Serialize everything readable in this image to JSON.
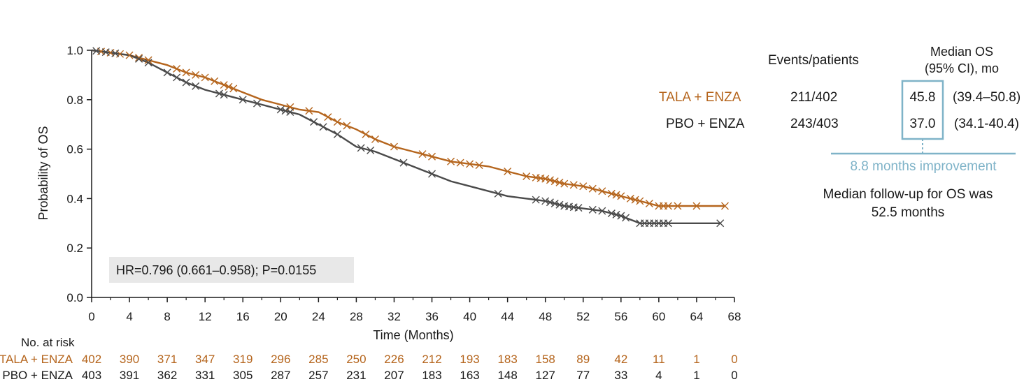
{
  "chart_data": {
    "type": "line",
    "subtype": "kaplan-meier",
    "title": "",
    "xlabel": "Time (Months)",
    "ylabel": "Probability of OS",
    "xlim": [
      0,
      68
    ],
    "ylim": [
      0,
      1.0
    ],
    "x_ticks": [
      0,
      4,
      8,
      12,
      16,
      20,
      24,
      28,
      32,
      36,
      40,
      44,
      48,
      52,
      56,
      60,
      64,
      68
    ],
    "y_ticks": [
      "0.0",
      "0.2",
      "0.4",
      "0.6",
      "0.8",
      "1.0"
    ],
    "colors": {
      "tala": "#b5651d",
      "pbo": "#4a4a4a"
    },
    "series": [
      {
        "name": "TALA + ENZA",
        "color": "#b5651d",
        "x": [
          0,
          2,
          4,
          6,
          8,
          10,
          12,
          14,
          16,
          18,
          20,
          22,
          24,
          26,
          28,
          30,
          32,
          34,
          36,
          38,
          40,
          42,
          44,
          46,
          48,
          50,
          52,
          54,
          56,
          58,
          60,
          62,
          64,
          67
        ],
        "y": [
          1.0,
          0.99,
          0.98,
          0.96,
          0.94,
          0.91,
          0.89,
          0.86,
          0.83,
          0.8,
          0.78,
          0.76,
          0.75,
          0.71,
          0.68,
          0.64,
          0.61,
          0.59,
          0.57,
          0.55,
          0.54,
          0.53,
          0.51,
          0.49,
          0.48,
          0.46,
          0.45,
          0.43,
          0.41,
          0.39,
          0.37,
          0.37,
          0.37,
          0.37
        ],
        "censor_x": [
          1,
          2,
          3,
          4,
          5,
          6,
          9,
          10,
          11,
          12,
          13,
          14,
          14.5,
          15,
          21,
          23,
          25,
          26,
          27,
          29,
          30,
          32,
          35,
          36,
          38,
          39,
          40,
          41,
          44,
          46,
          47,
          47.5,
          48,
          48.5,
          49,
          49.5,
          50,
          51,
          52,
          53,
          54,
          55,
          55.5,
          56,
          57,
          57.5,
          58,
          59,
          60,
          60.5,
          61,
          62,
          64,
          67
        ]
      },
      {
        "name": "PBO + ENZA",
        "color": "#4a4a4a",
        "x": [
          0,
          2,
          4,
          6,
          8,
          10,
          12,
          14,
          16,
          18,
          20,
          22,
          24,
          26,
          28,
          30,
          32,
          34,
          36,
          38,
          40,
          42,
          44,
          46,
          48,
          50,
          52,
          54,
          56,
          58,
          60,
          62,
          64,
          66.5
        ],
        "y": [
          1.0,
          0.99,
          0.98,
          0.95,
          0.91,
          0.87,
          0.84,
          0.82,
          0.8,
          0.78,
          0.76,
          0.74,
          0.7,
          0.66,
          0.61,
          0.59,
          0.56,
          0.53,
          0.5,
          0.47,
          0.45,
          0.43,
          0.41,
          0.4,
          0.39,
          0.37,
          0.36,
          0.35,
          0.33,
          0.3,
          0.3,
          0.3,
          0.3,
          0.3
        ],
        "censor_x": [
          0.5,
          1.5,
          2.5,
          5,
          6,
          8,
          9,
          10,
          11,
          13.5,
          14,
          16,
          17.5,
          20,
          20.5,
          21,
          23.5,
          24.5,
          26,
          28.5,
          29.5,
          33,
          36,
          43,
          47,
          48,
          48.5,
          49,
          49.5,
          50,
          50.5,
          51,
          51.5,
          53,
          54,
          55,
          55.5,
          56,
          56.5,
          58,
          58.5,
          59,
          59.5,
          60,
          60.5,
          61,
          66.5
        ]
      }
    ],
    "annotation": "HR=0.796 (0.661–0.958); P=0.0155",
    "risk_table": {
      "title": "No. at risk",
      "rows": [
        {
          "label": "TALA + ENZA",
          "color": "#b5651d",
          "values": [
            "402",
            "390",
            "371",
            "347",
            "319",
            "296",
            "285",
            "250",
            "226",
            "212",
            "193",
            "183",
            "158",
            "89",
            "42",
            "11",
            "1",
            "0"
          ]
        },
        {
          "label": "PBO + ENZA",
          "color": "#1a1a1a",
          "values": [
            "403",
            "391",
            "362",
            "331",
            "305",
            "287",
            "257",
            "231",
            "207",
            "183",
            "163",
            "148",
            "127",
            "77",
            "33",
            "4",
            "1",
            "0"
          ]
        }
      ]
    }
  },
  "side_table": {
    "events_header": "Events/patients",
    "median_header_line1": "Median OS",
    "median_header_line2": "(95% CI), mo",
    "rows": [
      {
        "label": "TALA + ENZA",
        "events": "211/402",
        "median": "45.8",
        "ci": "(39.4–50.8)"
      },
      {
        "label": "PBO + ENZA",
        "events": "243/403",
        "median": "37.0",
        "ci": "(34.1-40.4)"
      }
    ],
    "improvement": "8.8 months improvement",
    "followup_line1": "Median follow-up for OS was",
    "followup_line2": "52.5 months",
    "box_color": "#7fb3c8"
  }
}
